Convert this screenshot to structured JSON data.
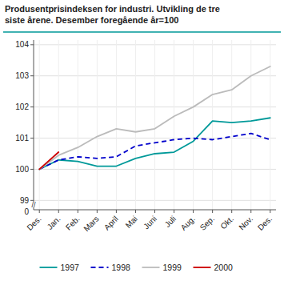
{
  "chart_data": {
    "type": "line",
    "title": "Produsentprisindeksen for industri. Utvikling de tre\nsiste årene. Desember foregående år=100",
    "categories": [
      "Des.",
      "Jan.",
      "Feb.",
      "Mars",
      "April",
      "Mai",
      "Juni",
      "Juli",
      "Aug.",
      "Sep.",
      "Okt.",
      "Nov.",
      "Des."
    ],
    "series": [
      {
        "name": "1997",
        "color": "#009999",
        "values": [
          100.0,
          100.3,
          100.25,
          100.1,
          100.1,
          100.35,
          100.5,
          100.55,
          100.9,
          101.55,
          101.5,
          101.55,
          101.65
        ]
      },
      {
        "name": "1998",
        "color": "#0000cc",
        "line_style": "dashed",
        "values": [
          100.0,
          100.3,
          100.4,
          100.35,
          100.4,
          100.75,
          100.85,
          100.95,
          101.0,
          100.95,
          101.05,
          101.15,
          100.95
        ]
      },
      {
        "name": "1999",
        "color": "#bbbbbb",
        "values": [
          100.0,
          100.45,
          100.7,
          101.05,
          101.3,
          101.2,
          101.3,
          101.7,
          102.0,
          102.4,
          102.55,
          103.0,
          103.3
        ]
      },
      {
        "name": "2000",
        "color": "#cc0000",
        "values": [
          100.0,
          100.55,
          null,
          null,
          null,
          null,
          null,
          null,
          null,
          null,
          null,
          null,
          null
        ]
      }
    ],
    "ylim": [
      98.7,
      104.15
    ],
    "yticks": [
      99,
      100,
      101,
      102,
      103,
      104
    ],
    "grid": true,
    "legend": "bottom",
    "annotations": [
      "//",
      "0"
    ]
  }
}
